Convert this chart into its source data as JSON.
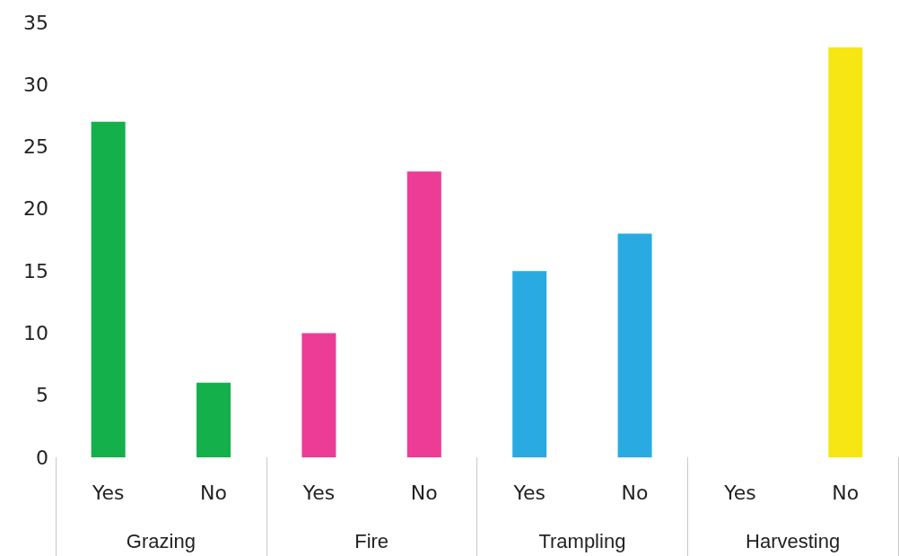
{
  "chart_data": {
    "type": "bar",
    "categories": [
      "Yes",
      "No",
      "Yes",
      "No",
      "Yes",
      "No",
      "Yes",
      "No"
    ],
    "values": [
      27,
      6,
      10,
      23,
      15,
      18,
      0,
      33
    ],
    "colors": [
      "#13b04b",
      "#13b04b",
      "#ec3c96",
      "#ec3c96",
      "#29abe2",
      "#29abe2",
      "#f5e614",
      "#f5e614"
    ],
    "annotations": [
      "Grazing",
      "Fire",
      "Trampling",
      "Harvesting"
    ],
    "ylim": [
      0,
      35
    ],
    "yticks": [
      0,
      5,
      10,
      15,
      20,
      25,
      30,
      35
    ],
    "grid": false
  }
}
